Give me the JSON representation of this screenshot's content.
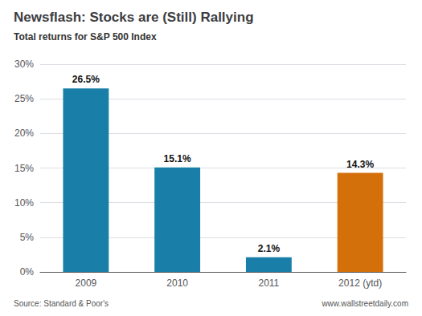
{
  "chart_data": {
    "type": "bar",
    "title": "Newsflash: Stocks are (Still) Rallying",
    "subtitle": "Total returns for S&P 500 Index",
    "categories": [
      "2009",
      "2010",
      "2011",
      "2012 (ytd)"
    ],
    "values": [
      26.5,
      15.1,
      2.1,
      14.3
    ],
    "value_labels": [
      "26.5%",
      "15.1%",
      "2.1%",
      "14.3%"
    ],
    "colors": [
      "#1a7fa8",
      "#1a7fa8",
      "#1a7fa8",
      "#d4700a"
    ],
    "ylim": [
      0,
      30
    ],
    "yticks": [
      {
        "value": 0,
        "label": "0%"
      },
      {
        "value": 5,
        "label": "5%"
      },
      {
        "value": 10,
        "label": "10%"
      },
      {
        "value": 15,
        "label": "15%"
      },
      {
        "value": 20,
        "label": "20%"
      },
      {
        "value": 25,
        "label": "25%"
      },
      {
        "value": 30,
        "label": "30%"
      }
    ],
    "grid": true,
    "data_labels": true,
    "annotations": [
      "Source: Standard & Poor's",
      "www.wallstreetdaily.com"
    ]
  }
}
